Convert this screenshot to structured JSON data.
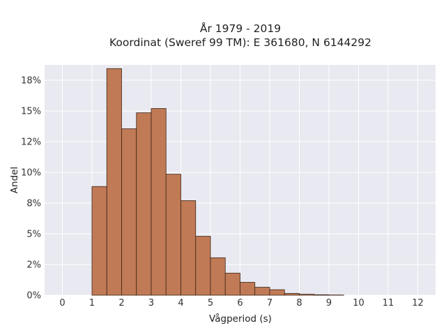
{
  "chart_data": {
    "type": "bar",
    "title_lines": [
      "År 1979 - 2019",
      "Koordinat (Sweref 99 TM): E 361680, N 6144292"
    ],
    "xlabel": "Vågperiod (s)",
    "ylabel": "Andel",
    "xlim": [
      -0.6,
      12.6
    ],
    "ylim": [
      0,
      0.1875
    ],
    "x_ticks": [
      0,
      1,
      2,
      3,
      4,
      5,
      6,
      7,
      8,
      9,
      10,
      11,
      12
    ],
    "y_ticks": [
      0,
      0.025,
      0.05,
      0.075,
      0.1,
      0.125,
      0.15,
      0.175
    ],
    "y_tick_labels": [
      "0%",
      "2%",
      "5%",
      "8%",
      "10%",
      "12%",
      "15%",
      "18%"
    ],
    "bin_width": 0.5,
    "bins": [
      {
        "start": 1.0,
        "end": 1.5,
        "value": 0.0885
      },
      {
        "start": 1.5,
        "end": 2.0,
        "value": 0.1845
      },
      {
        "start": 2.0,
        "end": 2.5,
        "value": 0.1355
      },
      {
        "start": 2.5,
        "end": 3.0,
        "value": 0.1485
      },
      {
        "start": 3.0,
        "end": 3.5,
        "value": 0.152
      },
      {
        "start": 3.5,
        "end": 4.0,
        "value": 0.0985
      },
      {
        "start": 4.0,
        "end": 4.5,
        "value": 0.077
      },
      {
        "start": 4.5,
        "end": 5.0,
        "value": 0.048
      },
      {
        "start": 5.0,
        "end": 5.5,
        "value": 0.0305
      },
      {
        "start": 5.5,
        "end": 6.0,
        "value": 0.018
      },
      {
        "start": 6.0,
        "end": 6.5,
        "value": 0.0105
      },
      {
        "start": 6.5,
        "end": 7.0,
        "value": 0.0065
      },
      {
        "start": 7.0,
        "end": 7.5,
        "value": 0.0045
      },
      {
        "start": 7.5,
        "end": 8.0,
        "value": 0.0015
      },
      {
        "start": 8.0,
        "end": 8.5,
        "value": 0.0008
      },
      {
        "start": 8.5,
        "end": 9.0,
        "value": 0.0004
      },
      {
        "start": 9.0,
        "end": 9.5,
        "value": 0.0002
      }
    ],
    "grid": true,
    "colors": {
      "bar_fill": "#c07a55",
      "bar_edge": "#3b2518",
      "plot_background": "#e9e9f1",
      "grid": "#ffffff"
    }
  }
}
